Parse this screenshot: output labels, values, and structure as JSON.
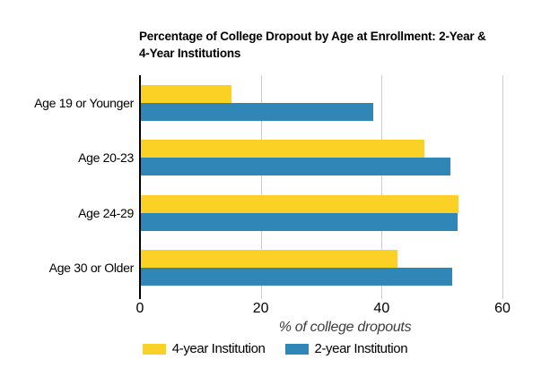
{
  "title_lines": [
    "Percentage of College Dropout by Age at Enrollment: 2-Year &",
    "4-Year Institutions"
  ],
  "chart_data": {
    "type": "bar",
    "orientation": "horizontal",
    "title": "Percentage of College Dropout by Age at Enrollment: 2-Year & 4-Year Institutions",
    "xlabel": "% of college dropouts",
    "ylabel": "",
    "categories": [
      "Age 19 or Younger",
      "Age 20-23",
      "Age 24-29",
      "Age 30 or Older"
    ],
    "series": [
      {
        "name": "4-year Institution",
        "color": "#FBD125",
        "values": [
          15,
          47,
          52.6,
          42.5
        ]
      },
      {
        "name": "2-year Institution",
        "color": "#3186B8",
        "values": [
          38.5,
          51.3,
          52.4,
          51.6
        ]
      }
    ],
    "x_ticks": [
      0,
      20,
      40,
      60
    ],
    "xlim": [
      0,
      60
    ],
    "grid": true,
    "legend_position": "bottom"
  },
  "colors": {
    "series_4year": "#FBD125",
    "series_2year": "#3186B8",
    "gridline": "#cccccc",
    "axis": "#000000",
    "axis_title_text": "#3d3d3d",
    "background": "#ffffff"
  }
}
